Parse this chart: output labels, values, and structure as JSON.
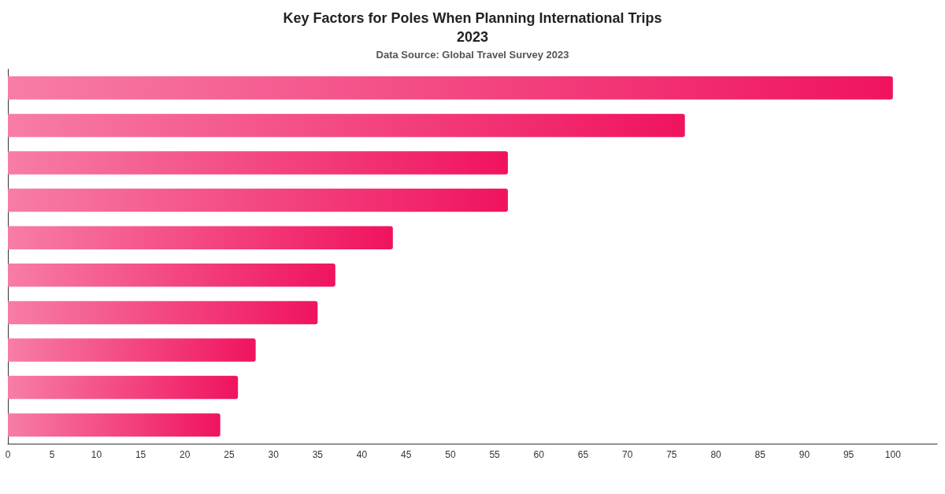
{
  "chart_data": {
    "type": "bar",
    "orientation": "horizontal",
    "title": "Key Factors for Poles When Planning International Trips\n2023",
    "subtitle": "Data Source: Global Travel Survey 2023",
    "categories": [
      null,
      null,
      null,
      null,
      null,
      null,
      null,
      null,
      null,
      null
    ],
    "values": [
      100,
      76.5,
      56.5,
      56.5,
      43.5,
      37,
      35,
      28,
      26,
      24
    ],
    "color": "#f0135f",
    "xlim": [
      0,
      105
    ],
    "xticks": [
      0,
      5,
      10,
      15,
      20,
      25,
      30,
      35,
      40,
      45,
      50,
      55,
      60,
      65,
      70,
      75,
      80,
      85,
      90,
      95,
      100
    ],
    "grid": false,
    "tick_labels": "x"
  }
}
